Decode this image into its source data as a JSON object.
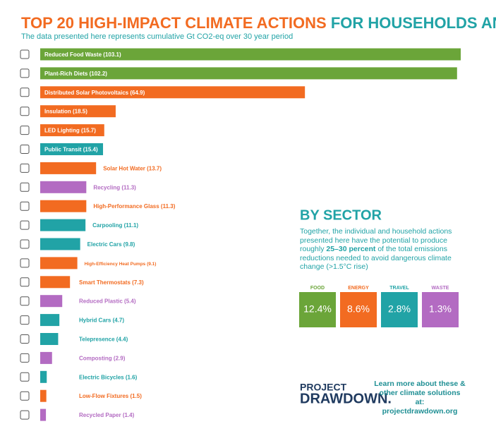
{
  "chart_data": {
    "type": "bar",
    "orientation": "horizontal",
    "title": {
      "highlight": "TOP 20 HIGH-IMPACT CLIMATE ACTIONS",
      "rest": "FOR HOUSEHOLDS AND INDIVIDUALS"
    },
    "subtitle": "The data presented here represents cumulative Gt CO2-eq over 30 year period",
    "categories": [
      "Reduced Food Waste",
      "Plant-Rich Diets",
      "Distributed Solar Photovoltaics",
      "Insulation",
      "LED Lighting",
      "Public Transit",
      "Solar Hot Water",
      "Recycling",
      "High-Performance Glass",
      "Carpooling",
      "Electric Cars",
      "High-Efficiency Heat Pumps",
      "Smart Thermostats",
      "Reduced Plastic",
      "Hybrid Cars",
      "Telepresence",
      "Composting",
      "Electric Bicycles",
      "Low-Flow Fixtures",
      "Recycled Paper"
    ],
    "values": [
      103.1,
      102.2,
      64.9,
      18.5,
      15.7,
      15.4,
      13.7,
      11.3,
      11.3,
      11.1,
      9.8,
      9.1,
      7.3,
      5.4,
      4.7,
      4.4,
      2.9,
      1.6,
      1.5,
      1.4
    ],
    "value_labels": [
      "(103.1)",
      "(102.2)",
      "(64.9)",
      "(18.5)",
      "(15.7)",
      "(15.4)",
      "(13.7)",
      "(11.3)",
      "(11.3)",
      "(11.1)",
      "(9.8)",
      "(9.1)",
      "(7.3)",
      "(5.4)",
      "(4.7)",
      "(4.4)",
      "(2.9)",
      "(1.6)",
      "(1.5)",
      "(1.4)"
    ],
    "colors": [
      "#6ba539",
      "#6ba539",
      "#f26b21",
      "#f26b21",
      "#f26b21",
      "#21a3a6",
      "#f26b21",
      "#b36bc2",
      "#f26b21",
      "#21a3a6",
      "#21a3a6",
      "#f26b21",
      "#f26b21",
      "#b36bc2",
      "#21a3a6",
      "#21a3a6",
      "#b36bc2",
      "#21a3a6",
      "#f26b21",
      "#b36bc2"
    ]
  },
  "sector": {
    "title": "BY SECTOR",
    "text_before": "Together, the individual and household actions presented here have the potential to produce roughly ",
    "text_bold": "25–30 percent",
    "text_after": " of the total emissions reductions needed to avoid dangerous climate change (>1.5°C rise)",
    "shares": [
      {
        "name": "FOOD",
        "share": "12.4%",
        "color": "#6ba539"
      },
      {
        "name": "ENERGY",
        "share": "8.6%",
        "color": "#f26b21"
      },
      {
        "name": "TRAVEL",
        "share": "2.8%",
        "color": "#21a3a6"
      },
      {
        "name": "WASTE",
        "share": "1.3%",
        "color": "#b36bc2"
      }
    ]
  },
  "footer": {
    "logo_top": "PROJECT",
    "logo_bottom": "DRAWDOWN.",
    "cta": "Learn more about these & other climate solutions at:",
    "url": "projectdrawdown.org"
  }
}
